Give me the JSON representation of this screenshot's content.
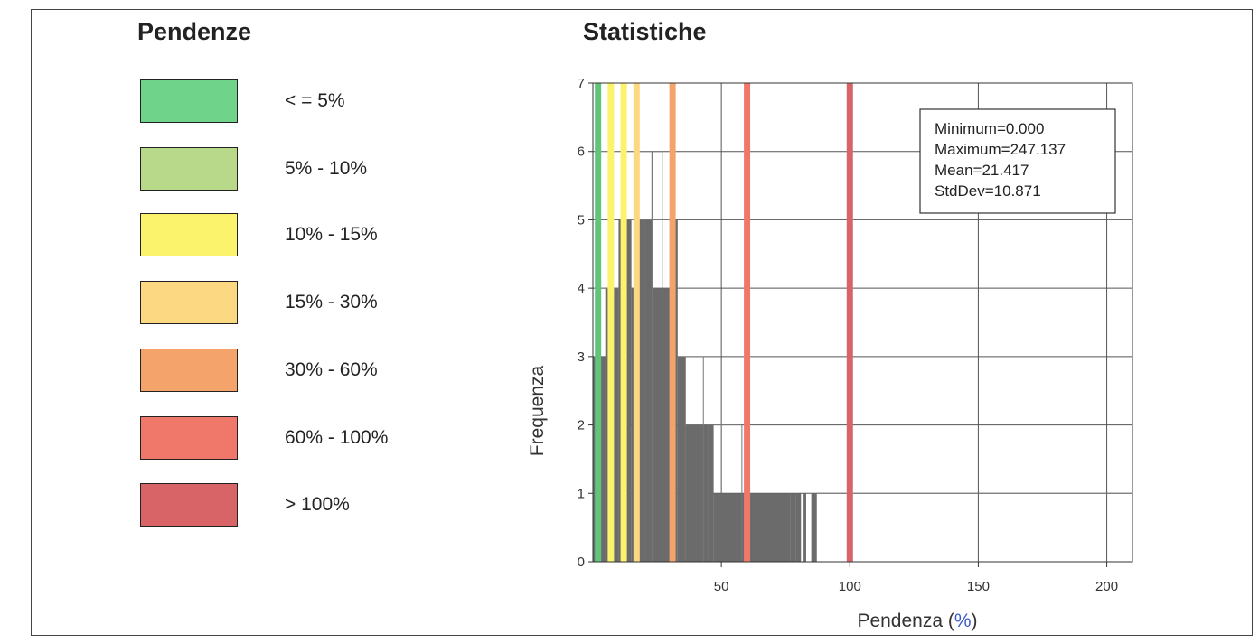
{
  "legend": {
    "title": "Pendenze",
    "items": [
      {
        "label": "< = 5%",
        "color": "#6fd38a"
      },
      {
        "label": "5% - 10%",
        "color": "#b8d98a"
      },
      {
        "label": "10% - 15%",
        "color": "#faf36b"
      },
      {
        "label": "15% - 30%",
        "color": "#fdd882"
      },
      {
        "label": "30% - 60%",
        "color": "#f4a46a"
      },
      {
        "label": "60% - 100%",
        "color": "#f0786a"
      },
      {
        "label": "> 100%",
        "color": "#d96468"
      }
    ]
  },
  "stats": {
    "title": "Statistiche",
    "lines": [
      "Minimum=0.000",
      "Maximum=247.137",
      "Mean=21.417",
      "StdDev=10.871"
    ]
  },
  "chart_data": {
    "type": "bar",
    "xlabel_text": "Pendenza (",
    "xlabel_unit": "%",
    "xlabel_close": ")",
    "ylabel": "Frequenza",
    "xlim": [
      0,
      210
    ],
    "ylim": [
      0,
      7
    ],
    "xticks": [
      50,
      100,
      150,
      200
    ],
    "yticks": [
      0,
      1,
      2,
      3,
      4,
      5,
      6,
      7
    ],
    "grid": true,
    "bar_color": "#6b6b6b",
    "histogram": [
      {
        "x0": 0,
        "x1": 5,
        "count": 3
      },
      {
        "x0": 5,
        "x1": 10,
        "count": 4
      },
      {
        "x0": 10,
        "x1": 15,
        "count": 5
      },
      {
        "x0": 15,
        "x1": 18,
        "count": 4
      },
      {
        "x0": 18,
        "x1": 23,
        "count": 5
      },
      {
        "x0": 23,
        "x1": 30,
        "count": 4
      },
      {
        "x0": 30,
        "x1": 33,
        "count": 5
      },
      {
        "x0": 33,
        "x1": 36,
        "count": 3
      },
      {
        "x0": 36,
        "x1": 47,
        "count": 2
      },
      {
        "x0": 47,
        "x1": 59,
        "count": 1
      },
      {
        "x0": 61,
        "x1": 77,
        "count": 1
      },
      {
        "x0": 77,
        "x1": 79,
        "count": 1
      },
      {
        "x0": 79,
        "x1": 81,
        "count": 1
      },
      {
        "x0": 82,
        "x1": 83,
        "count": 1
      },
      {
        "x0": 85,
        "x1": 87,
        "count": 1
      }
    ],
    "outline_bins": [
      {
        "x0": 5,
        "x1": 10,
        "count": 4
      },
      {
        "x0": 13,
        "x1": 20,
        "count": 5
      },
      {
        "x0": 16,
        "x1": 23,
        "count": 6
      },
      {
        "x0": 23,
        "x1": 27,
        "count": 6
      },
      {
        "x0": 20,
        "x1": 30,
        "count": 5
      },
      {
        "x0": 36,
        "x1": 43,
        "count": 3
      },
      {
        "x0": 45,
        "x1": 58,
        "count": 2
      },
      {
        "x0": 87,
        "x1": 210,
        "count": 1
      }
    ],
    "threshold_lines": [
      {
        "x": 2,
        "color": "#5fc57a"
      },
      {
        "x": 7,
        "color": "#faf36b"
      },
      {
        "x": 12,
        "color": "#faf36b"
      },
      {
        "x": 17,
        "color": "#fdd882"
      },
      {
        "x": 31,
        "color": "#f4a46a"
      },
      {
        "x": 60,
        "color": "#f0786a"
      },
      {
        "x": 100,
        "color": "#d96468"
      }
    ]
  }
}
